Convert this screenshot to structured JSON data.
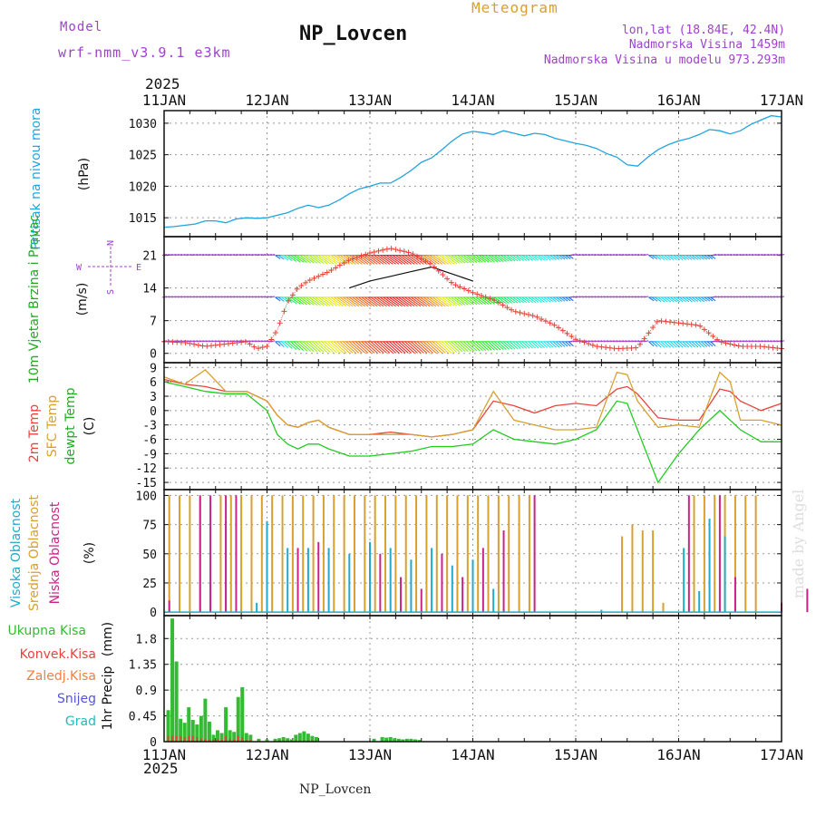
{
  "header": {
    "model_label": "Model",
    "model_name": "wrf-nmm_v3.9.1  e3km",
    "station": "NP_Lovcen",
    "product": "Meteogram",
    "coords": "lon,lat (18.84E, 42.4N)",
    "altitude": "Nadmorska Visina 1459m",
    "model_altitude": "Nadmorska Visina u modelu 973.293m"
  },
  "footer": {
    "station": "NP_Lovcen",
    "credit": "made by Angel"
  },
  "colors": {
    "pressure": "#1fa4e0",
    "wind_label": "#22aa22",
    "t2m": "#e8433a",
    "tsfc": "#d8a030",
    "dewpt": "#22cc22",
    "high_cloud": "#22aacc",
    "mid_cloud": "#d8a030",
    "low_cloud": "#cc2288",
    "precip_total": "#33bb33",
    "precip_conv": "#e8433a",
    "precip_frz": "#f08040",
    "snow": "#5555dd",
    "hail": "#22bbbb",
    "model_purple": "#a040d0",
    "gray": "#888888"
  },
  "chart_data": [
    {
      "type": "line",
      "id": "pressure",
      "ylabel_name": "Pritisak na nivou mora",
      "ylabel_unit": "(hPa)",
      "ylim": [
        1012,
        1032
      ],
      "yticks": [
        1015,
        1020,
        1025,
        1030
      ],
      "year_top": "2025",
      "year_bottom": "2025",
      "x_days": [
        "11JAN",
        "12JAN",
        "13JAN",
        "14JAN",
        "15JAN",
        "16JAN",
        "17JAN"
      ],
      "x": [
        0,
        0.1,
        0.2,
        0.3,
        0.4,
        0.5,
        0.6,
        0.7,
        0.8,
        0.9,
        1.0,
        1.1,
        1.2,
        1.3,
        1.4,
        1.5,
        1.6,
        1.7,
        1.8,
        1.9,
        2.0,
        2.1,
        2.2,
        2.3,
        2.4,
        2.5,
        2.6,
        2.7,
        2.8,
        2.9,
        3.0,
        3.1,
        3.2,
        3.3,
        3.4,
        3.5,
        3.6,
        3.7,
        3.8,
        3.9,
        4.0,
        4.1,
        4.2,
        4.3,
        4.4,
        4.5,
        4.6,
        4.7,
        4.8,
        4.9,
        5.0,
        5.1,
        5.2,
        5.3,
        5.4,
        5.5,
        5.6,
        5.7,
        5.8,
        5.9,
        6.0
      ],
      "series": [
        {
          "name": "MSLP",
          "values": [
            1013.5,
            1013.6,
            1013.8,
            1014.0,
            1014.5,
            1014.5,
            1014.2,
            1014.8,
            1015.0,
            1014.9,
            1015.0,
            1015.4,
            1015.8,
            1016.5,
            1017.0,
            1016.6,
            1017.0,
            1017.8,
            1018.8,
            1019.6,
            1020.0,
            1020.5,
            1020.5,
            1021.4,
            1022.5,
            1023.8,
            1024.5,
            1025.8,
            1027.2,
            1028.3,
            1028.7,
            1028.5,
            1028.2,
            1028.8,
            1028.4,
            1028.0,
            1028.4,
            1028.2,
            1027.6,
            1027.2,
            1026.8,
            1026.5,
            1026.0,
            1025.2,
            1024.6,
            1023.4,
            1023.2,
            1024.6,
            1025.8,
            1026.6,
            1027.2,
            1027.6,
            1028.2,
            1029.0,
            1028.8,
            1028.3,
            1028.8,
            1029.8,
            1030.5,
            1031.2,
            1031.0
          ]
        }
      ]
    },
    {
      "type": "line",
      "id": "wind",
      "ylabel_name": "10m Vjetar Brzina i Pravac",
      "ylabel_unit": "(m/s)",
      "compass": {
        "n": "N",
        "w": "W",
        "e": "E",
        "s": "S"
      },
      "ylim": [
        -2,
        25
      ],
      "yticks": [
        0,
        7,
        14,
        21
      ],
      "barb_rows": [
        21,
        12,
        2.5
      ],
      "x": [
        0,
        0.2,
        0.4,
        0.6,
        0.8,
        0.9,
        1.0,
        1.1,
        1.2,
        1.3,
        1.4,
        1.6,
        1.8,
        2.0,
        2.2,
        2.4,
        2.6,
        2.8,
        3.0,
        3.2,
        3.4,
        3.6,
        3.8,
        4.0,
        4.2,
        4.4,
        4.6,
        4.8,
        5.0,
        5.2,
        5.4,
        5.6,
        5.8,
        6.0
      ],
      "series": [
        {
          "name": "speed",
          "values": [
            2.5,
            2.3,
            1.5,
            2.0,
            2.5,
            1.0,
            1.5,
            5.0,
            11.0,
            14.0,
            15.5,
            17.5,
            20.0,
            21.5,
            22.5,
            21.5,
            19.0,
            15.0,
            13.0,
            11.5,
            9.0,
            8.0,
            6.0,
            3.0,
            1.5,
            1.0,
            1.2,
            7.0,
            6.5,
            6.0,
            2.5,
            1.5,
            1.5,
            1.0
          ]
        },
        {
          "name": "gust_black",
          "values": [
            null,
            null,
            null,
            null,
            null,
            null,
            null,
            null,
            null,
            null,
            null,
            null,
            14.0,
            15.5,
            16.5,
            17.5,
            18.5,
            17.0,
            15.5,
            null,
            null,
            null,
            null,
            null,
            null,
            null,
            null,
            null,
            null,
            null,
            null,
            null,
            null,
            null
          ]
        }
      ]
    },
    {
      "type": "line",
      "id": "temperature",
      "ylabel_lines": [
        "2m Temp",
        "SFC Temp",
        "dewpt Temp"
      ],
      "ylabel_unit": "(C)",
      "ylim": [
        -16.5,
        10
      ],
      "yticks": [
        9,
        6,
        3,
        0,
        -3,
        -6,
        -9,
        -12,
        -15
      ],
      "x": [
        0,
        0.2,
        0.4,
        0.6,
        0.8,
        1.0,
        1.1,
        1.2,
        1.3,
        1.4,
        1.5,
        1.6,
        1.8,
        2.0,
        2.2,
        2.4,
        2.6,
        2.8,
        3.0,
        3.2,
        3.4,
        3.6,
        3.8,
        4.0,
        4.2,
        4.4,
        4.5,
        4.6,
        4.8,
        5.0,
        5.2,
        5.4,
        5.5,
        5.6,
        5.8,
        6.0
      ],
      "series": [
        {
          "name": "2m Temp",
          "values": [
            6.5,
            5.5,
            5.0,
            4.0,
            4.0,
            2.0,
            -1.0,
            -3.0,
            -3.5,
            -2.5,
            -2.0,
            -3.5,
            -5.0,
            -5.0,
            -4.5,
            -5.0,
            -5.5,
            -5.0,
            -4.0,
            2.0,
            1.0,
            -0.5,
            1.0,
            1.5,
            1.0,
            4.5,
            5.0,
            3.5,
            -1.5,
            -2.0,
            -2.0,
            4.5,
            4.0,
            2.0,
            0.0,
            1.5
          ]
        },
        {
          "name": "SFC Temp",
          "values": [
            7.0,
            5.5,
            8.5,
            4.0,
            4.0,
            2.0,
            -1.0,
            -3.0,
            -3.5,
            -2.5,
            -2.0,
            -3.5,
            -5.0,
            -5.0,
            -5.0,
            -5.0,
            -5.5,
            -5.0,
            -4.0,
            4.0,
            -2.0,
            -3.0,
            -4.0,
            -4.0,
            -3.5,
            8.0,
            7.5,
            2.0,
            -3.5,
            -3.0,
            -3.5,
            8.0,
            6.0,
            -2.0,
            -2.0,
            -3.0
          ]
        },
        {
          "name": "dewpt Temp",
          "values": [
            6.0,
            5.0,
            4.0,
            3.5,
            3.5,
            0.0,
            -5.0,
            -7.0,
            -8.0,
            -7.0,
            -7.0,
            -8.0,
            -9.5,
            -9.5,
            -9.0,
            -8.5,
            -7.5,
            -7.5,
            -7.0,
            -4.0,
            -6.0,
            -6.5,
            -7.0,
            -6.0,
            -4.0,
            2.0,
            1.5,
            -4.0,
            -15.0,
            -9.0,
            -4.0,
            0.0,
            -2.0,
            -4.0,
            -6.5,
            -6.5
          ]
        }
      ]
    },
    {
      "type": "bar",
      "id": "cloud",
      "ylabel_lines": [
        "Visoka Oblacnost",
        "Srednja Oblacnost",
        "Niska Oblacnost"
      ],
      "ylabel_unit": "(%)",
      "ylim": [
        -3,
        105
      ],
      "yticks": [
        0,
        25,
        50,
        75,
        100
      ],
      "series": [
        {
          "name": "Srednja Oblacnost",
          "x": [
            0.05,
            0.15,
            0.25,
            0.35,
            0.45,
            0.55,
            0.65,
            0.75,
            0.85,
            0.95,
            1.05,
            1.15,
            1.25,
            1.35,
            1.45,
            1.55,
            1.65,
            1.75,
            1.85,
            1.95,
            2.05,
            2.15,
            2.25,
            2.35,
            2.45,
            2.55,
            2.65,
            2.75,
            2.85,
            2.95,
            3.05,
            3.15,
            3.25,
            3.35,
            3.45,
            3.55,
            4.45,
            4.55,
            4.65,
            4.75,
            4.85,
            5.05,
            5.15,
            5.25,
            5.35,
            5.45,
            5.55,
            5.65,
            5.75
          ],
          "values": [
            100,
            100,
            100,
            100,
            25,
            100,
            100,
            100,
            100,
            100,
            100,
            100,
            100,
            100,
            100,
            100,
            100,
            100,
            100,
            100,
            100,
            100,
            100,
            100,
            100,
            100,
            100,
            100,
            100,
            100,
            100,
            100,
            100,
            100,
            100,
            100,
            65,
            75,
            70,
            70,
            8,
            3,
            100,
            100,
            100,
            100,
            100,
            100,
            100
          ]
        },
        {
          "name": "Visoka Oblacnost",
          "x": [
            0.6,
            0.9,
            1.0,
            1.2,
            1.4,
            1.6,
            1.8,
            2.0,
            2.2,
            2.4,
            2.6,
            2.8,
            3.0,
            3.2,
            4.25,
            5.05,
            5.2,
            5.3,
            5.45
          ],
          "values": [
            78,
            8,
            78,
            55,
            55,
            55,
            50,
            60,
            55,
            45,
            55,
            40,
            45,
            20,
            2,
            55,
            18,
            80,
            65
          ]
        },
        {
          "name": "Niska Oblacnost",
          "x": [
            0.05,
            0.35,
            0.45,
            0.6,
            0.7,
            1.3,
            1.5,
            2.1,
            2.3,
            2.5,
            2.7,
            2.9,
            3.1,
            3.3,
            3.6,
            5.1,
            5.4,
            5.55,
            6.0,
            6.25,
            6.45,
            6.75,
            6.85,
            6.9
          ],
          "values": [
            10,
            100,
            100,
            100,
            100,
            55,
            60,
            50,
            30,
            20,
            50,
            30,
            55,
            70,
            100,
            100,
            100,
            30,
            8,
            20,
            10,
            10,
            8,
            5
          ]
        }
      ]
    },
    {
      "type": "bar",
      "id": "precip",
      "ylabel_name": "1hr Precip",
      "ylabel_unit": "(mm)",
      "legend": [
        "Ukupna Kisa",
        "Konvek.Kisa",
        "Zaledj.Kisa",
        "Snijeg",
        "Grad"
      ],
      "ylim": [
        0,
        2.2
      ],
      "yticks": [
        0,
        0.45,
        0.9,
        1.35,
        1.8
      ],
      "x": [
        0.04,
        0.08,
        0.12,
        0.16,
        0.2,
        0.24,
        0.28,
        0.32,
        0.36,
        0.4,
        0.44,
        0.48,
        0.52,
        0.56,
        0.6,
        0.64,
        0.68,
        0.72,
        0.76,
        0.8,
        0.84,
        0.92,
        1.0,
        1.08,
        1.12,
        1.16,
        1.2,
        1.24,
        1.28,
        1.32,
        1.36,
        1.4,
        1.44,
        1.48,
        2.04,
        2.12,
        2.16,
        2.2,
        2.24,
        2.28,
        2.32,
        2.36,
        2.4,
        2.44,
        2.48
      ],
      "series": [
        {
          "name": "Ukupna Kisa",
          "values": [
            0.55,
            2.15,
            1.4,
            0.4,
            0.33,
            0.6,
            0.38,
            0.3,
            0.45,
            0.75,
            0.35,
            0.12,
            0.2,
            0.15,
            0.6,
            0.2,
            0.17,
            0.78,
            0.95,
            0.15,
            0.12,
            0.05,
            0.04,
            0.05,
            0.06,
            0.08,
            0.06,
            0.04,
            0.12,
            0.15,
            0.18,
            0.14,
            0.1,
            0.08,
            0.05,
            0.08,
            0.07,
            0.08,
            0.06,
            0.05,
            0.04,
            0.05,
            0.05,
            0.04,
            0.03
          ]
        },
        {
          "name": "Konvek.Kisa",
          "values": [
            0.1,
            0.1,
            0.1,
            0.1,
            0.08,
            0.1,
            0.1,
            0.08,
            0.06,
            0.05,
            0.04,
            0.04,
            0.04,
            0.03,
            0.1,
            0.05,
            0.04,
            0.1,
            0.08,
            0.03,
            0.03,
            0.02,
            0.02,
            0.02,
            0.02,
            0.02,
            0.02,
            0.02,
            0.02,
            0.02,
            0.02,
            0.02,
            0.02,
            0.02,
            0.0,
            0.0,
            0.0,
            0.0,
            0.0,
            0.0,
            0.0,
            0.0,
            0.0,
            0.0,
            0.0
          ]
        }
      ]
    }
  ]
}
